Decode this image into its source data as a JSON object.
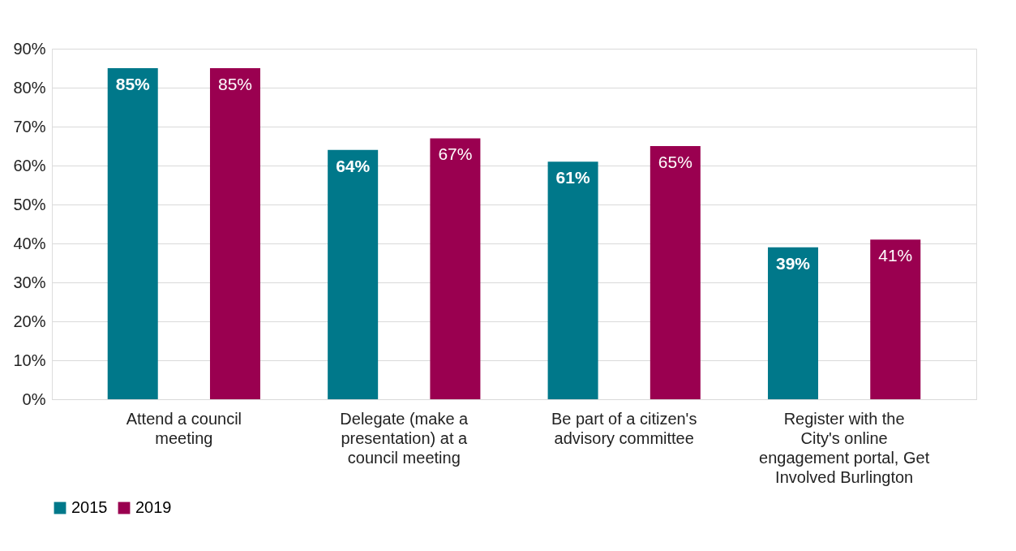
{
  "chart_data": {
    "type": "bar",
    "categories": [
      "Attend a council meeting",
      "Delegate (make a presentation) at a council meeting",
      "Be part of a citizen's advisory committee",
      "Register with the City's online engagement portal, Get Involved Burlington"
    ],
    "series": [
      {
        "name": "2015",
        "color": "#00788a",
        "values": [
          85,
          64,
          61,
          39
        ],
        "value_labels": [
          "85%",
          "64%",
          "61%",
          "39%"
        ]
      },
      {
        "name": "2019",
        "color": "#9a0050",
        "values": [
          85,
          67,
          65,
          41
        ],
        "value_labels": [
          "85%",
          "67%",
          "65%",
          "41%"
        ]
      }
    ],
    "ylim": [
      0,
      90
    ],
    "yticks": [
      {
        "value": 0,
        "label": "0%"
      },
      {
        "value": 10,
        "label": "10%"
      },
      {
        "value": 20,
        "label": "20%"
      },
      {
        "value": 30,
        "label": "30%"
      },
      {
        "value": 40,
        "label": "40%"
      },
      {
        "value": 50,
        "label": "50%"
      },
      {
        "value": 60,
        "label": "60%"
      },
      {
        "value": 70,
        "label": "70%"
      },
      {
        "value": 80,
        "label": "80%"
      },
      {
        "value": 90,
        "label": "90%"
      }
    ],
    "grid": "y",
    "legend": "bottom left"
  }
}
